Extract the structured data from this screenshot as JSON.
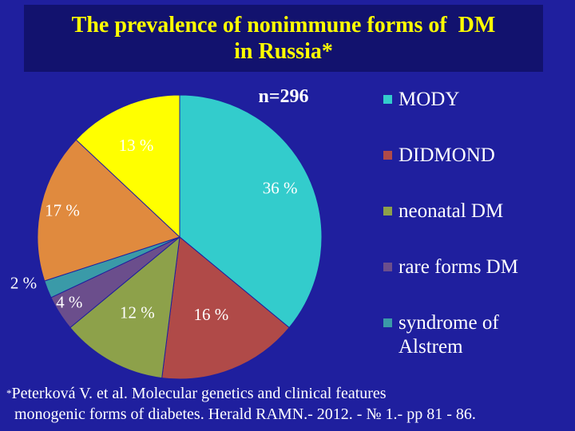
{
  "title": {
    "line1": "The prevalence of nonimmune forms of  DM",
    "line2": "in Russia*"
  },
  "chart_data": {
    "type": "pie",
    "annotation": "n=296",
    "slices": [
      {
        "name": "MODY",
        "value": 36,
        "label": "36 %",
        "color": "#33cccc"
      },
      {
        "name": "DIDMOND",
        "value": 16,
        "label": "16 %",
        "color": "#b04a48"
      },
      {
        "name": "neonatal DM",
        "value": 12,
        "label": "12 %",
        "color": "#8da14a"
      },
      {
        "name": "",
        "value": 4,
        "label": "4 %",
        "color": "#6b4e8c"
      },
      {
        "name": "",
        "value": 2,
        "label": "2 %",
        "color": "#3a9aa8"
      },
      {
        "name": "",
        "value": 17,
        "label": "17 %",
        "color": "#e08a3e"
      },
      {
        "name": "",
        "value": 13,
        "label": "13 %",
        "color": "#ffff00"
      }
    ],
    "legend": [
      {
        "label": "MODY",
        "color": "#33cccc"
      },
      {
        "label": "DIDMOND",
        "color": "#b04a48"
      },
      {
        "label": "neonatal DM",
        "color": "#8da14a"
      },
      {
        "label": "rare forms DM",
        "color": "#6b4e8c"
      },
      {
        "label": "syndrome of Alstrem",
        "color": "#3a9aa8"
      }
    ],
    "legend_position": "right"
  },
  "footnote": {
    "star": "*",
    "line1": "Peterková V. et al. Molecular genetics and clinical features",
    "line2": "monogenic forms of diabetes. Herald RAMN.- 2012. - № 1.- pp 81 - 86."
  }
}
